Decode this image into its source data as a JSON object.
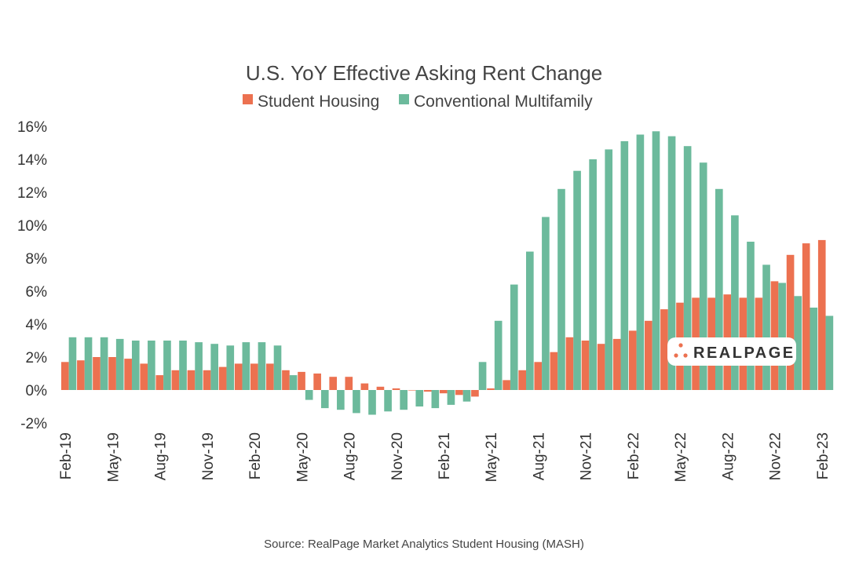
{
  "colors": {
    "student_housing": "#EC7150",
    "conventional_multifamily": "#6CBA9C",
    "axis_text": "#333333",
    "logo_dots": "#EC7150"
  },
  "logo": {
    "text": "REALPAGE"
  },
  "source": "Source: RealPage Market Analytics Student Housing (MASH)",
  "chart_data": {
    "type": "bar",
    "title": "U.S. YoY Effective Asking Rent Change",
    "xlabel": "",
    "ylabel": "",
    "ylim": [
      -2,
      16
    ],
    "yticks": [
      -2,
      0,
      2,
      4,
      6,
      8,
      10,
      12,
      14,
      16
    ],
    "ytick_labels": [
      "-2%",
      "0%",
      "2%",
      "4%",
      "6%",
      "8%",
      "10%",
      "12%",
      "14%",
      "16%"
    ],
    "grid": false,
    "legend_position": "top",
    "categories": [
      "Feb-19",
      "Mar-19",
      "Apr-19",
      "May-19",
      "Jun-19",
      "Jul-19",
      "Aug-19",
      "Sep-19",
      "Oct-19",
      "Nov-19",
      "Dec-19",
      "Jan-20",
      "Feb-20",
      "Mar-20",
      "Apr-20",
      "May-20",
      "Jun-20",
      "Jul-20",
      "Aug-20",
      "Sep-20",
      "Oct-20",
      "Nov-20",
      "Dec-20",
      "Jan-21",
      "Feb-21",
      "Mar-21",
      "Apr-21",
      "May-21",
      "Jun-21",
      "Jul-21",
      "Aug-21",
      "Sep-21",
      "Oct-21",
      "Nov-21",
      "Dec-21",
      "Jan-22",
      "Feb-22",
      "Mar-22",
      "Apr-22",
      "May-22",
      "Jun-22",
      "Jul-22",
      "Aug-22",
      "Sep-22",
      "Oct-22",
      "Nov-22",
      "Dec-22",
      "Jan-23",
      "Feb-23"
    ],
    "x_tick_labels": [
      "Feb-19",
      "May-19",
      "Aug-19",
      "Nov-19",
      "Feb-20",
      "May-20",
      "Aug-20",
      "Nov-20",
      "Feb-21",
      "May-21",
      "Aug-21",
      "Nov-21",
      "Feb-22",
      "May-22",
      "Aug-22",
      "Nov-22",
      "Feb-23"
    ],
    "series": [
      {
        "name": "Student Housing",
        "values": [
          1.7,
          1.8,
          2.0,
          2.0,
          1.9,
          1.6,
          0.9,
          1.2,
          1.2,
          1.2,
          1.4,
          1.6,
          1.6,
          1.6,
          1.2,
          1.1,
          1.0,
          0.8,
          0.8,
          0.4,
          0.2,
          0.1,
          0.0,
          -0.1,
          -0.2,
          -0.3,
          -0.4,
          0.1,
          0.6,
          1.2,
          1.7,
          2.3,
          3.2,
          3.0,
          2.8,
          3.1,
          3.6,
          4.2,
          4.9,
          5.3,
          5.6,
          5.6,
          5.8,
          5.6,
          5.6,
          6.6,
          8.2,
          8.9,
          9.1
        ]
      },
      {
        "name": "Conventional Multifamily",
        "values": [
          3.2,
          3.2,
          3.2,
          3.1,
          3.0,
          3.0,
          3.0,
          3.0,
          2.9,
          2.8,
          2.7,
          2.9,
          2.9,
          2.7,
          0.9,
          -0.6,
          -1.1,
          -1.2,
          -1.4,
          -1.5,
          -1.3,
          -1.2,
          -1.0,
          -1.1,
          -0.9,
          -0.7,
          1.7,
          4.2,
          6.4,
          8.4,
          10.5,
          12.2,
          13.3,
          14.0,
          14.6,
          15.1,
          15.5,
          15.7,
          15.4,
          14.8,
          13.8,
          12.2,
          10.6,
          9.0,
          7.6,
          6.5,
          5.7,
          5.0,
          4.5
        ]
      }
    ]
  }
}
